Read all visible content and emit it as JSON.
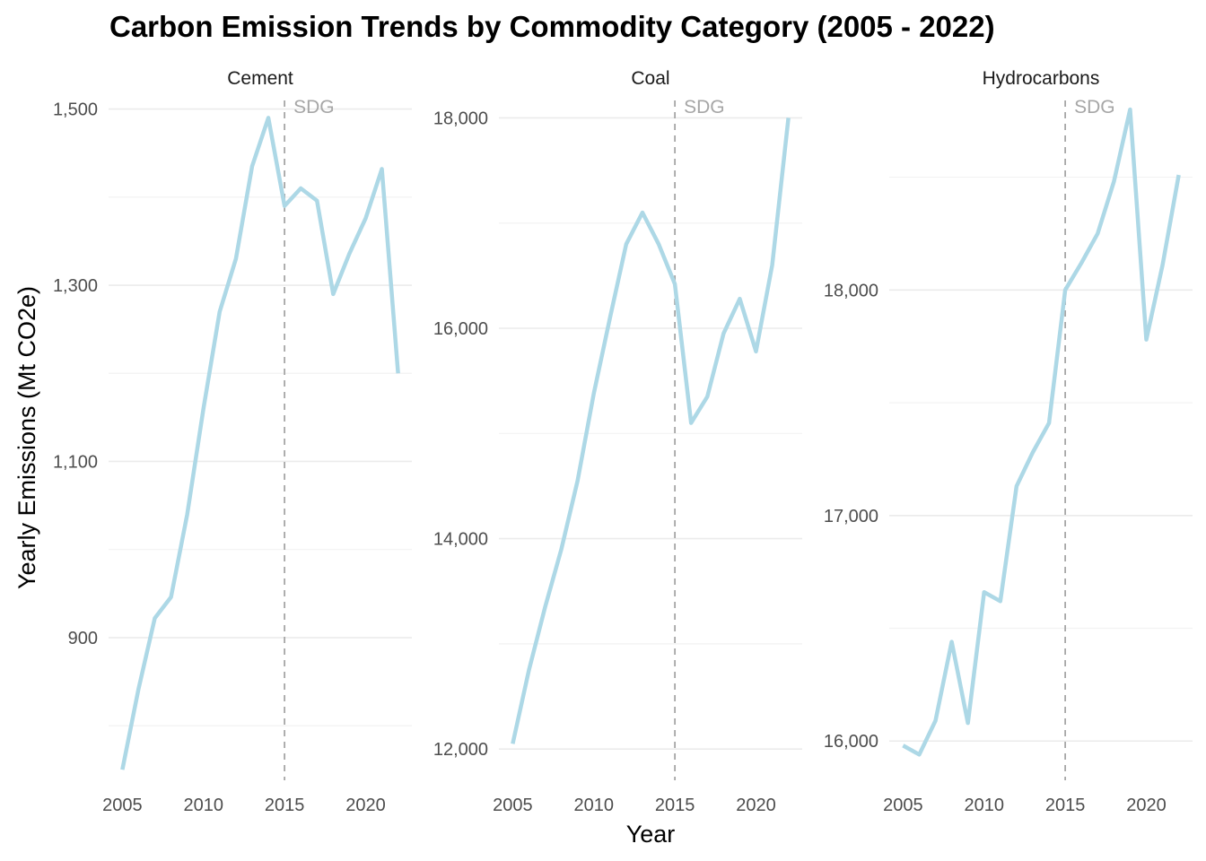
{
  "chart_data": {
    "type": "line",
    "title": "Carbon Emission Trends by Commodity Category (2005 - 2022)",
    "xlabel": "Year",
    "ylabel": "Yearly Emissions (Mt CO2e)",
    "line_color": "#add8e6",
    "reference_line": {
      "x": 2015,
      "label": "SDG"
    },
    "x": [
      2005,
      2006,
      2007,
      2008,
      2009,
      2010,
      2011,
      2012,
      2013,
      2014,
      2015,
      2016,
      2017,
      2018,
      2019,
      2020,
      2021,
      2022
    ],
    "panels": [
      {
        "name": "Cement",
        "xlim": [
          2004.15,
          2022.85
        ],
        "ylim": [
          738,
          1522
        ],
        "x_ticks": [
          2005,
          2010,
          2015,
          2020
        ],
        "x_tick_labels": [
          "2005",
          "2010",
          "2015",
          "2020"
        ],
        "y_ticks": [
          900,
          1100,
          1300,
          1500
        ],
        "y_tick_labels": [
          "900",
          "1,100",
          "1,300",
          "1,500"
        ],
        "y_minor": [
          800,
          1000,
          1200,
          1400
        ],
        "values": [
          750,
          842,
          922,
          946,
          1040,
          1160,
          1270,
          1330,
          1435,
          1490,
          1390,
          1410,
          1396,
          1290,
          1336,
          1376,
          1432,
          1200
        ]
      },
      {
        "name": "Coal",
        "xlim": [
          2004.15,
          2022.85
        ],
        "ylim": [
          11703,
          18268
        ],
        "x_ticks": [
          2005,
          2010,
          2015,
          2020
        ],
        "x_tick_labels": [
          "2005",
          "2010",
          "2015",
          "2020"
        ],
        "y_ticks": [
          12000,
          14000,
          16000,
          18000
        ],
        "y_tick_labels": [
          "12,000",
          "14,000",
          "16,000",
          "18,000"
        ],
        "y_minor": [
          13000,
          15000,
          17000
        ],
        "values": [
          12050,
          12750,
          13350,
          13900,
          14550,
          15380,
          16100,
          16800,
          17100,
          16800,
          16420,
          15100,
          15350,
          15950,
          16280,
          15780,
          16600,
          18000
        ]
      },
      {
        "name": "Hydrocarbons",
        "xlim": [
          2004.15,
          2022.85
        ],
        "ylim": [
          15826,
          18888
        ],
        "x_ticks": [
          2005,
          2010,
          2015,
          2020
        ],
        "x_tick_labels": [
          "2005",
          "2010",
          "2015",
          "2020"
        ],
        "y_ticks": [
          16000,
          17000,
          18000
        ],
        "y_tick_labels": [
          "16,000",
          "17,000",
          "18,000"
        ],
        "y_minor": [
          16500,
          17500,
          18500
        ],
        "values": [
          15980,
          15940,
          16090,
          16440,
          16080,
          16660,
          16620,
          17130,
          17280,
          17410,
          18000,
          18120,
          18250,
          18480,
          18800,
          17780,
          18110,
          18510
        ]
      }
    ]
  }
}
